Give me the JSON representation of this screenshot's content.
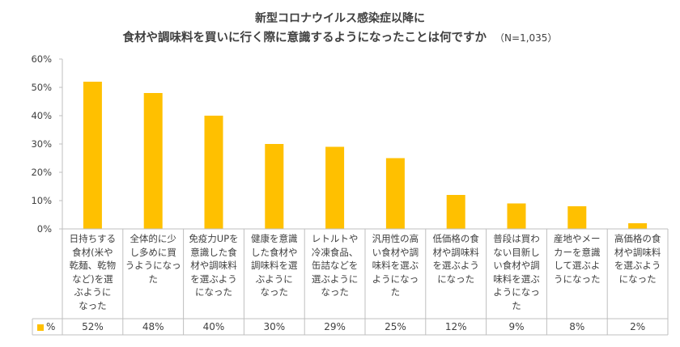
{
  "chart_data": {
    "type": "bar",
    "title_line1": "新型コロナウイルス感染症以降に",
    "title_line2": "食材や調味料を買いに行く際に意識するようになったことは何ですか",
    "note": "（N=1,035）",
    "categories": [
      "日持ちする食材(米や乾麺、乾物など)を選ぶようになった",
      "全体的に少し多めに買うようになった",
      "免疫力UPを意識した食材や調味料を選ぶようになった",
      "健康を意識した食材や調味料を選ぶようになった",
      "レトルトや冷凍食品、缶詰などを選ぶようになった",
      "汎用性の高い食材や調味料を選ぶようになった",
      "低価格の食材や調味料を選ぶようになった",
      "普段は買わない目新しい食材や調味料を選ぶようになった",
      "産地やメーカーを意識して選ぶようになった",
      "高価格の食材や調味料を選ぶようになった"
    ],
    "category_lines": [
      [
        "日持ちする",
        "食材(米や",
        "乾麺、乾物",
        "など)を選",
        "ぶように",
        "なった"
      ],
      [
        "全体的に少",
        "し多めに買",
        "うようになっ",
        "た"
      ],
      [
        "免疫力UPを",
        "意識した食",
        "材や調味料",
        "を選ぶよう",
        "になった"
      ],
      [
        "健康を意識",
        "した食材や",
        "調味料を選",
        "ぶように",
        "なった"
      ],
      [
        "レトルトや",
        "冷凍食品、",
        "缶詰などを",
        "選ぶように",
        "なった"
      ],
      [
        "汎用性の高",
        "い食材や調",
        "味料を選ぶ",
        "ようになっ",
        "た"
      ],
      [
        "低価格の食",
        "材や調味料",
        "を選ぶよう",
        "になった"
      ],
      [
        "普段は買わ",
        "ない目新し",
        "い食材や調",
        "味料を選ぶ",
        "ようになっ",
        "た"
      ],
      [
        "産地やメー",
        "カーを意識",
        "して選ぶよ",
        "うになった"
      ],
      [
        "高価格の食",
        "材や調味料",
        "を選ぶよう",
        "になった"
      ]
    ],
    "values": [
      52,
      48,
      40,
      30,
      29,
      25,
      12,
      9,
      8,
      2
    ],
    "value_labels": [
      "52%",
      "48%",
      "40%",
      "30%",
      "29%",
      "25%",
      "12%",
      "9%",
      "8%",
      "2%"
    ],
    "series": [
      {
        "name": "%",
        "values": [
          52,
          48,
          40,
          30,
          29,
          25,
          12,
          9,
          8,
          2
        ]
      }
    ],
    "yticks": [
      "0%",
      "10%",
      "20%",
      "30%",
      "40%",
      "50%",
      "60%"
    ],
    "ylim": [
      0,
      60
    ],
    "grid": false,
    "bar_color": "#FFC000"
  }
}
